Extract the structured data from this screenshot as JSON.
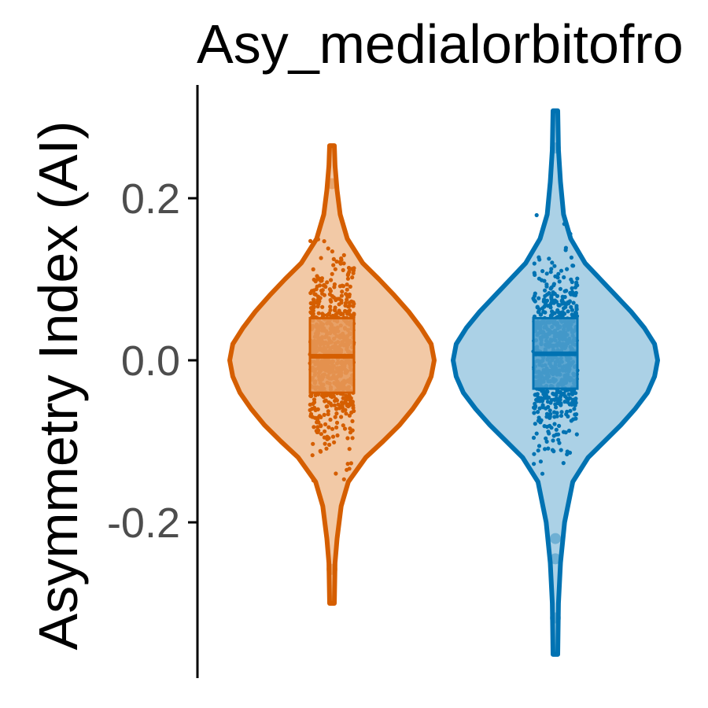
{
  "chart_data": {
    "type": "violin",
    "title": "Asy_medialorbitofro",
    "xlabel": "",
    "ylabel": "Asymmetry Index (AI)",
    "ylim": [
      -0.36,
      0.34
    ],
    "yticks": [
      -0.2,
      0.0,
      0.2
    ],
    "ytick_labels": [
      "-0.2",
      "0.0",
      "0.2"
    ],
    "grid": false,
    "legend": "none",
    "groups": [
      {
        "color": "#D55E00",
        "fill": "#F2C9A6",
        "box_fill": "#E69A5C",
        "min": -0.3,
        "max": 0.265,
        "q1": -0.04,
        "median": 0.005,
        "q3": 0.052,
        "outliers": [
          0.218,
          -0.258
        ],
        "density": [
          [
            -0.3,
            0.02
          ],
          [
            -0.25,
            0.03
          ],
          [
            -0.22,
            0.05
          ],
          [
            -0.18,
            0.09
          ],
          [
            -0.15,
            0.16
          ],
          [
            -0.12,
            0.33
          ],
          [
            -0.1,
            0.5
          ],
          [
            -0.08,
            0.66
          ],
          [
            -0.06,
            0.79
          ],
          [
            -0.04,
            0.9
          ],
          [
            -0.02,
            0.97
          ],
          [
            0.0,
            1.0
          ],
          [
            0.02,
            0.97
          ],
          [
            0.04,
            0.87
          ],
          [
            0.06,
            0.75
          ],
          [
            0.08,
            0.61
          ],
          [
            0.1,
            0.46
          ],
          [
            0.12,
            0.3
          ],
          [
            0.15,
            0.15
          ],
          [
            0.18,
            0.08
          ],
          [
            0.21,
            0.05
          ],
          [
            0.24,
            0.03
          ],
          [
            0.265,
            0.02
          ]
        ]
      },
      {
        "color": "#0072B2",
        "fill": "#ABD1E6",
        "box_fill": "#4F9FCC",
        "min": -0.363,
        "max": 0.308,
        "q1": -0.035,
        "median": 0.008,
        "q3": 0.052,
        "outliers": [
          0.262,
          -0.22,
          -0.245,
          -0.318
        ],
        "density": [
          [
            -0.363,
            0.02
          ],
          [
            -0.3,
            0.03
          ],
          [
            -0.25,
            0.05
          ],
          [
            -0.2,
            0.09
          ],
          [
            -0.15,
            0.17
          ],
          [
            -0.12,
            0.32
          ],
          [
            -0.1,
            0.48
          ],
          [
            -0.08,
            0.64
          ],
          [
            -0.06,
            0.78
          ],
          [
            -0.04,
            0.9
          ],
          [
            -0.02,
            0.97
          ],
          [
            0.0,
            1.0
          ],
          [
            0.02,
            0.97
          ],
          [
            0.04,
            0.87
          ],
          [
            0.06,
            0.74
          ],
          [
            0.08,
            0.59
          ],
          [
            0.1,
            0.44
          ],
          [
            0.12,
            0.29
          ],
          [
            0.15,
            0.15
          ],
          [
            0.18,
            0.08
          ],
          [
            0.22,
            0.05
          ],
          [
            0.26,
            0.03
          ],
          [
            0.308,
            0.02
          ]
        ]
      }
    ]
  }
}
